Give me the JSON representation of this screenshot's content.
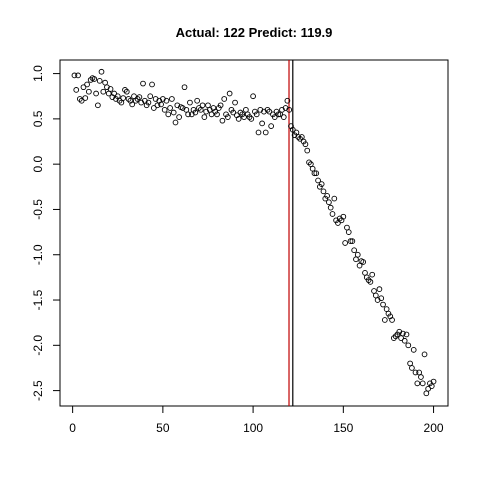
{
  "chart_data": {
    "type": "scatter",
    "title": "Actual: 122 Predict: 119.9",
    "x": [
      1,
      2,
      3,
      4,
      5,
      6,
      7,
      8,
      9,
      10,
      11,
      12,
      13,
      14,
      15,
      16,
      17,
      18,
      19,
      20,
      21,
      22,
      23,
      24,
      25,
      26,
      27,
      28,
      29,
      30,
      31,
      32,
      33,
      34,
      35,
      36,
      37,
      38,
      39,
      40,
      41,
      42,
      43,
      44,
      45,
      46,
      47,
      48,
      49,
      50,
      51,
      52,
      53,
      54,
      55,
      56,
      57,
      58,
      59,
      60,
      61,
      62,
      63,
      64,
      65,
      66,
      67,
      68,
      69,
      70,
      71,
      72,
      73,
      74,
      75,
      76,
      77,
      78,
      79,
      80,
      81,
      82,
      83,
      84,
      85,
      86,
      87,
      88,
      89,
      90,
      91,
      92,
      93,
      94,
      95,
      96,
      97,
      98,
      99,
      100,
      101,
      102,
      103,
      104,
      105,
      106,
      107,
      108,
      109,
      110,
      111,
      112,
      113,
      114,
      115,
      116,
      117,
      118,
      119,
      120,
      121,
      122,
      123,
      124,
      125,
      126,
      127,
      128,
      129,
      130,
      131,
      132,
      133,
      134,
      135,
      136,
      137,
      138,
      139,
      140,
      141,
      142,
      143,
      144,
      145,
      146,
      147,
      148,
      149,
      150,
      151,
      152,
      153,
      154,
      155,
      156,
      157,
      158,
      159,
      160,
      161,
      162,
      163,
      164,
      165,
      166,
      167,
      168,
      169,
      170,
      171,
      172,
      173,
      174,
      175,
      176,
      177,
      178,
      179,
      180,
      181,
      182,
      183,
      184,
      185,
      186,
      187,
      188,
      189,
      190,
      191,
      192,
      193,
      194,
      195,
      196,
      197,
      198,
      199,
      200
    ],
    "values": [
      0.98,
      0.82,
      0.98,
      0.72,
      0.7,
      0.85,
      0.73,
      0.88,
      0.8,
      0.93,
      0.95,
      0.94,
      0.78,
      0.65,
      0.92,
      1.02,
      0.8,
      0.9,
      0.85,
      0.78,
      0.83,
      0.74,
      0.78,
      0.72,
      0.75,
      0.7,
      0.68,
      0.73,
      0.82,
      0.8,
      0.72,
      0.7,
      0.66,
      0.75,
      0.7,
      0.72,
      0.74,
      0.68,
      0.89,
      0.7,
      0.65,
      0.68,
      0.75,
      0.88,
      0.62,
      0.72,
      0.65,
      0.7,
      0.66,
      0.72,
      0.6,
      0.7,
      0.55,
      0.62,
      0.72,
      0.57,
      0.46,
      0.65,
      0.52,
      0.63,
      0.62,
      0.85,
      0.6,
      0.55,
      0.68,
      0.55,
      0.6,
      0.57,
      0.7,
      0.62,
      0.6,
      0.65,
      0.52,
      0.58,
      0.65,
      0.6,
      0.55,
      0.62,
      0.58,
      0.55,
      0.62,
      0.65,
      0.48,
      0.72,
      0.55,
      0.52,
      0.78,
      0.6,
      0.57,
      0.68,
      0.54,
      0.5,
      0.57,
      0.55,
      0.52,
      0.6,
      0.55,
      0.52,
      0.5,
      0.75,
      0.58,
      0.55,
      0.35,
      0.6,
      0.45,
      0.58,
      0.35,
      0.6,
      0.58,
      0.42,
      0.55,
      0.52,
      0.58,
      0.55,
      0.55,
      0.6,
      0.52,
      0.62,
      0.7,
      0.6,
      0.42,
      0.38,
      0.32,
      0.35,
      0.3,
      0.28,
      0.3,
      0.25,
      0.22,
      0.15,
      0.02,
      0.0,
      -0.05,
      -0.1,
      -0.1,
      -0.18,
      -0.25,
      -0.22,
      -0.3,
      -0.38,
      -0.35,
      -0.42,
      -0.48,
      -0.55,
      -0.38,
      -0.62,
      -0.65,
      -0.6,
      -0.62,
      -0.58,
      -0.87,
      -0.7,
      -0.75,
      -0.85,
      -0.85,
      -0.95,
      -1.05,
      -1.0,
      -1.12,
      -1.07,
      -1.08,
      -1.2,
      -1.25,
      -1.28,
      -1.3,
      -1.22,
      -1.4,
      -1.45,
      -1.5,
      -1.38,
      -1.48,
      -1.55,
      -1.72,
      -1.6,
      -1.65,
      -1.68,
      -1.72,
      -1.92,
      -1.9,
      -1.88,
      -1.85,
      -1.92,
      -1.87,
      -1.95,
      -1.88,
      -2.0,
      -2.2,
      -2.25,
      -2.05,
      -2.3,
      -2.42,
      -2.3,
      -2.35,
      -2.42,
      -2.1,
      -2.53,
      -2.48,
      -2.42,
      -2.45,
      -2.4
    ],
    "color": "#000000",
    "vlines": [
      {
        "value": 119.9,
        "color": "#c00000"
      },
      {
        "value": 122,
        "color": "#000000"
      }
    ],
    "xlim": [
      -7,
      208
    ],
    "xticks": [
      0,
      50,
      100,
      150,
      200
    ],
    "ylim": [
      -2.67,
      1.15
    ],
    "yticks": [
      {
        "value": -2.5,
        "label": "-2.5"
      },
      {
        "value": -2,
        "label": "-2.0"
      },
      {
        "value": -1.5,
        "label": "-1.5"
      },
      {
        "value": -1,
        "label": "-1.0"
      },
      {
        "value": -0.5,
        "label": "-0.5"
      },
      {
        "value": 0,
        "label": "0.0"
      },
      {
        "value": 0.5,
        "label": "0.5"
      },
      {
        "value": 1,
        "label": "1.0"
      }
    ],
    "grid": false
  }
}
